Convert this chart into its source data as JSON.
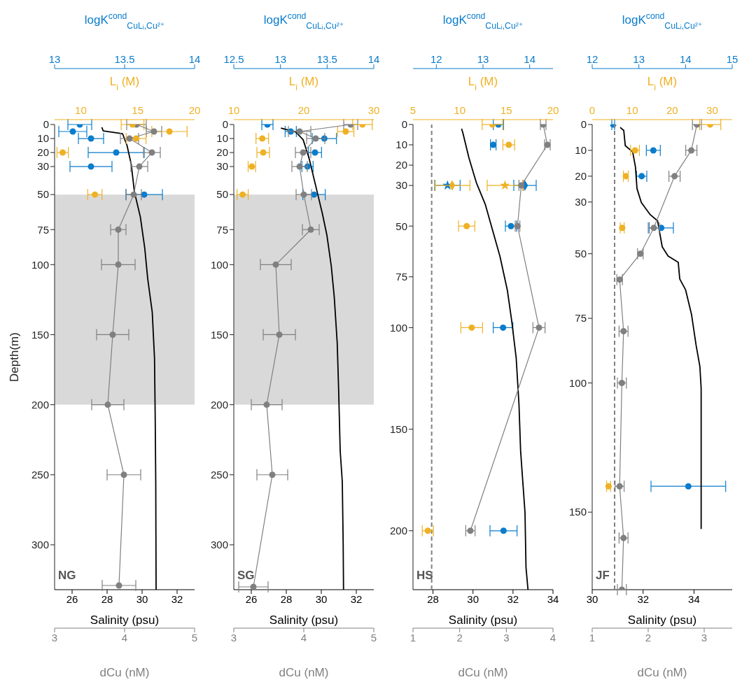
{
  "chart_data": [
    {
      "type": "scatter",
      "ylabel": "Depth(m)",
      "ylim": [
        332,
        0
      ],
      "yticks": [
        0,
        10,
        20,
        30,
        50,
        75,
        100,
        150,
        200,
        250,
        300
      ],
      "xlabel": "Salinity (psu)",
      "xlim": [
        25,
        33
      ],
      "xticks": [
        26,
        28,
        30,
        32
      ],
      "x2label": "logK$^{cond}$$_{CuLᵢ,Cu²⁺}$",
      "x2lim": [
        13,
        14
      ],
      "x2ticks": [
        13,
        13.5,
        14
      ],
      "bands": [
        {
          "axis": "y",
          "from": 50,
          "to": 200,
          "color": "#d9d9d9"
        }
      ],
      "annotations": [
        "NG"
      ],
      "series": [
        {
          "type": "line",
          "color": "#000000",
          "marker": "none",
          "x": [
            27.7,
            27.78,
            28.88,
            29.14,
            29.38,
            29.56,
            29.9,
            30.15,
            30.32,
            30.58,
            30.71,
            30.75,
            30.78,
            30.8
          ],
          "values": [
            2,
            4.6,
            6.5,
            15,
            28.5,
            48,
            66,
            88,
            110,
            134,
            167,
            211,
            255,
            332
          ]
        },
        {
          "type": "scatter",
          "axis": "x2",
          "color": "#0a7ccc",
          "marker": "circle",
          "x": [
            13.18,
            13.13,
            13.26,
            13.44,
            13.26,
            13.64
          ],
          "values": [
            0,
            5,
            10,
            20,
            30,
            50
          ],
          "xerrors": [
            0.085,
            0.1,
            0.09,
            0.2,
            0.15,
            0.13
          ]
        }
      ]
    },
    {
      "type": "scatter",
      "tick_labels": "x",
      "ylim": [
        332,
        0
      ],
      "xlabel": "dCu (nM)",
      "xlim": [
        3,
        5
      ],
      "xticks": [
        3,
        4,
        5
      ],
      "x2label": "L$_{i}$ (M)",
      "x2lim": [
        7.7,
        20
      ],
      "x2ticks": [
        10,
        15,
        20
      ],
      "series": [
        {
          "type": "line",
          "color": "#808080",
          "marker": "circle",
          "x": [
            4.17,
            4.42,
            4.07,
            4.39,
            4.21,
            4.13,
            3.91,
            3.91,
            3.83,
            3.76,
            3.99,
            3.92
          ],
          "values": [
            0,
            5,
            10,
            20,
            30,
            50,
            75,
            100,
            150,
            200,
            250,
            329
          ],
          "xerrors": [
            0.14,
            0.11,
            0.13,
            0.12,
            0.12,
            0.11,
            0.11,
            0.24,
            0.23,
            0.23,
            0.24,
            0.24
          ]
        },
        {
          "type": "scatter",
          "axis": "x2",
          "color": "#efb124",
          "marker": "circle",
          "x": [
            14.55,
            17.79,
            14.86,
            8.41,
            11.24
          ],
          "values": [
            0,
            5,
            10,
            20,
            50
          ],
          "xerrors": [
            1.0,
            1.55,
            0.87,
            0.5,
            0.63
          ]
        }
      ]
    },
    {
      "type": "scatter",
      "ylim": [
        332,
        0
      ],
      "yticks": [
        0,
        10,
        20,
        30,
        50,
        75,
        100,
        150,
        200,
        250,
        300
      ],
      "xlabel": "Salinity (psu)",
      "xlim": [
        25,
        33
      ],
      "xticks": [
        26,
        28,
        30,
        32
      ],
      "x2label": "logK$^{cond}$$_{CuLᵢ,Cu²⁺}$",
      "x2lim": [
        12.5,
        14
      ],
      "x2ticks": [
        12.5,
        13,
        13.5,
        14
      ],
      "bands": [
        {
          "axis": "y",
          "from": 50,
          "to": 200,
          "color": "#d9d9d9"
        }
      ],
      "annotations": [
        "SG"
      ],
      "series": [
        {
          "type": "line",
          "color": "#000000",
          "marker": "none",
          "x": [
            27.69,
            28.53,
            28.96,
            29.3,
            29.55,
            29.81,
            30.06,
            30.32,
            30.57,
            30.74,
            30.91,
            30.99,
            31.08,
            31.2,
            31.25,
            31.27
          ],
          "values": [
            2.5,
            5.3,
            10.8,
            24,
            37,
            50.5,
            63.5,
            79,
            101,
            123,
            156,
            189,
            233,
            255,
            299,
            332
          ]
        },
        {
          "type": "scatter",
          "axis": "x2",
          "color": "#0a7ccc",
          "marker": "circle",
          "x": [
            12.86,
            13.11,
            13.47,
            13.37,
            13.29,
            13.36
          ],
          "values": [
            0,
            5,
            10,
            20,
            30,
            50
          ],
          "xerrors": [
            0.06,
            0.06,
            0.13,
            0.07,
            0.06,
            0.12
          ]
        }
      ]
    },
    {
      "type": "scatter",
      "tick_labels": "x",
      "ylim": [
        332,
        0
      ],
      "xlabel": "dCu (nM)",
      "xlim": [
        3,
        5
      ],
      "xticks": [
        3,
        4,
        5
      ],
      "x2label": "L$_{i}$ (M)",
      "x2lim": [
        10,
        30
      ],
      "x2ticks": [
        10,
        20,
        30
      ],
      "series": [
        {
          "type": "line",
          "color": "#808080",
          "marker": "circle",
          "x": [
            4.67,
            3.94,
            4.17,
            3.99,
            3.94,
            4.0,
            4.1,
            3.6,
            3.65,
            3.47,
            3.55,
            3.28
          ],
          "values": [
            0,
            5,
            10,
            20,
            30,
            50,
            75,
            100,
            150,
            200,
            250,
            330
          ],
          "xerrors": [
            0.1,
            0.16,
            0.13,
            0.11,
            0.11,
            0.11,
            0.12,
            0.22,
            0.23,
            0.22,
            0.22,
            0.21
          ]
        },
        {
          "type": "scatter",
          "axis": "x2",
          "color": "#efb124",
          "marker": "circle",
          "x": [
            28.38,
            25.99,
            14.07,
            14.2,
            12.58,
            11.26
          ],
          "values": [
            0,
            5,
            10,
            20,
            30,
            50
          ],
          "xerrors": [
            1.4,
            1.17,
            0.9,
            0.9,
            0.53,
            0.8
          ]
        }
      ]
    },
    {
      "type": "scatter",
      "ylim": [
        229,
        0
      ],
      "yticks": [
        0,
        10,
        20,
        30,
        50,
        75,
        100,
        150,
        200
      ],
      "xlabel": "Salinity (psu)",
      "xlim": [
        27,
        34
      ],
      "xticks": [
        28,
        30,
        32,
        34
      ],
      "x2label": "logK$^{cond}$$_{CuLᵢ,Cu²⁺}$",
      "x2lim": [
        11.5,
        14.5
      ],
      "x2ticks": [
        12,
        13,
        14
      ],
      "annotations": [
        "HS"
      ],
      "series": [
        {
          "type": "line",
          "color": "#000000",
          "marker": "none",
          "x": [
            29.43,
            29.5,
            29.8,
            30.17,
            30.61,
            31.05,
            31.35,
            31.72,
            31.94,
            32.16,
            32.3,
            32.38,
            32.6,
            32.65,
            32.75
          ],
          "values": [
            2.1,
            4.4,
            16.5,
            28.7,
            39.2,
            54.5,
            65,
            81.7,
            97,
            115,
            138,
            160.6,
            191,
            218,
            229
          ]
        },
        {
          "type": "scatter",
          "axis": "x2",
          "color": "#0a7ccc",
          "marker": "circle",
          "x": [
            13.33,
            13.22,
            13.6,
            13.43,
            13.44
          ],
          "values": [
            0,
            10,
            50,
            100,
            200
          ],
          "xerrors": [
            0.11,
            0.06,
            0.12,
            0.21,
            0.29
          ]
        },
        {
          "type": "scatter",
          "axis": "x2",
          "color": "#0a7ccc",
          "marker": "star",
          "x": [
            12.24
          ],
          "values": [
            30
          ],
          "xerrors": [
            0.27
          ]
        },
        {
          "type": "scatter",
          "axis": "x2",
          "color": "#0a7ccc",
          "marker": "diamond",
          "x": [
            13.9
          ],
          "values": [
            30
          ],
          "xerrors": [
            0.24
          ]
        }
      ]
    },
    {
      "type": "scatter",
      "tick_labels": "x",
      "ylim": [
        229,
        0
      ],
      "xlabel": "dCu (nM)",
      "xlim": [
        1,
        4
      ],
      "xticks": [
        1,
        2,
        3,
        4
      ],
      "x2label": "L$_{i}$ (M)",
      "x2lim": [
        5,
        20
      ],
      "x2ticks": [
        5,
        10,
        15,
        20
      ],
      "ref_lines": [
        {
          "axis": "x",
          "value": 1.4,
          "color": "#808080",
          "line_style": "dashed"
        }
      ],
      "series": [
        {
          "type": "line",
          "color": "#808080",
          "marker": "circle",
          "x": [
            3.79,
            3.88,
            3.32,
            3.24,
            3.7,
            2.23
          ],
          "values": [
            0,
            10,
            30,
            50,
            100,
            200
          ],
          "xerrors": [
            0.06,
            0.06,
            0.05,
            0.05,
            0.13,
            0.1
          ]
        },
        {
          "type": "scatter",
          "axis": "x2",
          "color": "#efb124",
          "marker": "circle",
          "x": [
            13.51,
            15.26,
            10.75,
            11.29,
            6.59
          ],
          "values": [
            0,
            10,
            50,
            100,
            200
          ],
          "xerrors": [
            1.1,
            0.63,
            0.87,
            1.16,
            0.6
          ]
        },
        {
          "type": "scatter",
          "axis": "x2",
          "color": "#efb124",
          "marker": "diamond",
          "x": [
            9.2
          ],
          "values": [
            30
          ],
          "xerrors": [
            1.9
          ]
        },
        {
          "type": "scatter",
          "axis": "x2",
          "color": "#efb124",
          "marker": "star",
          "x": [
            14.85
          ],
          "values": [
            30
          ],
          "xerrors": [
            1.9
          ]
        }
      ]
    },
    {
      "type": "scatter",
      "ylim": [
        180,
        0
      ],
      "yticks": [
        0,
        10,
        20,
        30,
        50,
        75,
        100,
        150
      ],
      "xlabel": "Salinity (psu)",
      "xlim": [
        30,
        35.5
      ],
      "xticks": [
        30,
        32,
        34
      ],
      "x2label": "logK$^{cond}$$_{CuLᵢ,Cu²⁺}$",
      "x2lim": [
        12,
        15
      ],
      "x2ticks": [
        12,
        13,
        14,
        15
      ],
      "annotations": [
        "JF"
      ],
      "series": [
        {
          "type": "line",
          "color": "#000000",
          "marker": "none",
          "x": [
            31.1,
            31.24,
            31.3,
            31.59,
            31.7,
            31.76,
            31.93,
            32.28,
            32.57,
            32.75,
            32.98,
            33.38,
            33.44,
            33.67,
            33.9,
            34.08,
            34.23,
            34.28,
            34.28
          ],
          "values": [
            1.1,
            2.3,
            8.2,
            10.6,
            16.5,
            24.8,
            30.2,
            34.9,
            37.3,
            47.3,
            50.9,
            53.3,
            59.8,
            64,
            73.4,
            85.3,
            93.6,
            102,
            156.5
          ]
        },
        {
          "type": "scatter",
          "axis": "x2",
          "color": "#0a7ccc",
          "marker": "circle",
          "x": [
            12.45,
            13.31,
            13.06,
            13.48,
            14.06
          ],
          "values": [
            0,
            10,
            20,
            40,
            140
          ],
          "xerrors": [
            0.03,
            0.15,
            0.11,
            0.26,
            0.8
          ]
        }
      ]
    },
    {
      "type": "scatter",
      "tick_labels": "x",
      "ylim": [
        180,
        0
      ],
      "xlabel": "dCu (nM)",
      "xlim": [
        1,
        3.5
      ],
      "xticks": [
        1,
        2,
        3
      ],
      "x2label": "L$_{i}$ (M)",
      "x2lim": [
        0,
        35
      ],
      "x2ticks": [
        0,
        10,
        20,
        30
      ],
      "ref_lines": [
        {
          "axis": "x",
          "value": 1.4,
          "color": "#808080",
          "line_style": "dashed"
        }
      ],
      "series": [
        {
          "type": "line",
          "color": "#808080",
          "marker": "circle",
          "x": [
            2.87,
            2.77,
            2.47,
            2.1,
            1.86,
            1.49,
            1.56,
            1.53,
            1.49,
            1.56,
            1.53
          ],
          "values": [
            0,
            10,
            20,
            40,
            50,
            60,
            80,
            100,
            140,
            160,
            180
          ],
          "xerrors": [
            0.08,
            0.1,
            0.1,
            0.1,
            0.05,
            0.05,
            0.08,
            0.08,
            0.08,
            0.08,
            0.08
          ]
        },
        {
          "type": "scatter",
          "axis": "x2",
          "color": "#efb124",
          "marker": "circle",
          "x": [
            29.5,
            10.7,
            8.4,
            7.5,
            4.1
          ],
          "values": [
            0,
            10,
            20,
            40,
            140
          ],
          "xerrors": [
            2.65,
            1.1,
            0.6,
            0.5,
            0.5
          ]
        }
      ]
    }
  ]
}
